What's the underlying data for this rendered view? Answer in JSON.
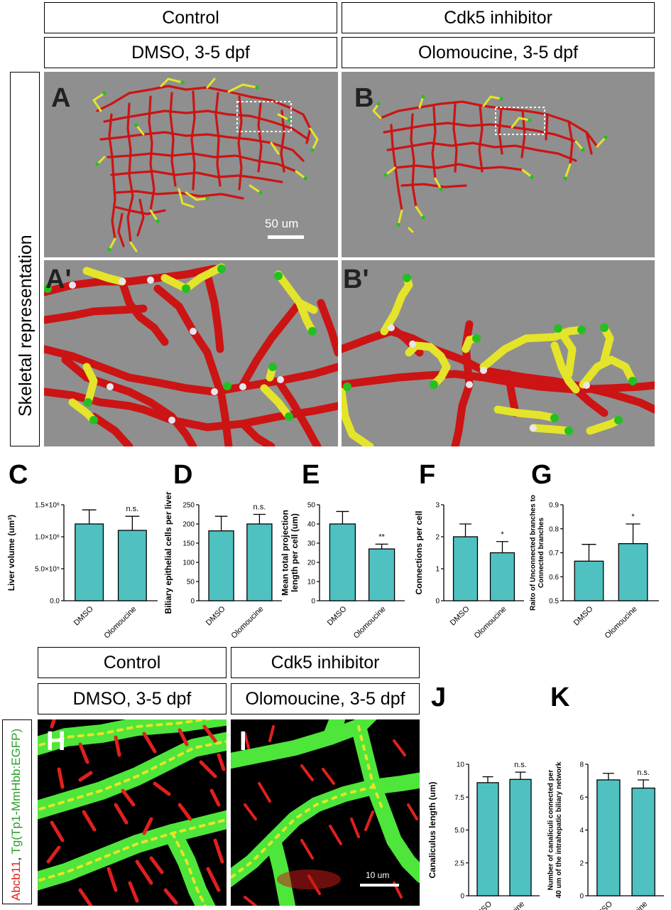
{
  "top": {
    "headers": [
      "Control",
      "Cdk5 inhibitor"
    ],
    "conditions": [
      "DMSO, 3-5 dpf",
      "Olomoucine, 3-5 dpf"
    ],
    "side_label": "Skeletal representation",
    "panel_letters": [
      "A",
      "B",
      "A'",
      "B'"
    ],
    "scalebar_text": "50 um"
  },
  "bottom": {
    "headers": [
      "Control",
      "Cdk5 inhibitor"
    ],
    "conditions": [
      "DMSO, 3-5 dpf",
      "Olomoucine, 3-5 dpf"
    ],
    "side_label_red": "Abcb11",
    "side_label_sep": ", ",
    "side_label_green": "Tg(Tp1-MmHbb:EGFP)",
    "panel_letters": [
      "H",
      "I"
    ],
    "scalebar_text": "10 um"
  },
  "colors": {
    "bar": "#4fc1c1",
    "skeleton_red": "#cc1414",
    "skeleton_yellow": "#e4e42a",
    "end_green": "#22c022",
    "node_white": "#e6e6ee",
    "panel_gray": "#8f8f8f",
    "fluor_green": "#4ee63a",
    "fluor_red": "#e0201e"
  },
  "chart_data": [
    {
      "id": "C",
      "type": "bar",
      "categories": [
        "DMSO",
        "Olomoucine"
      ],
      "values": [
        1200000,
        1100000
      ],
      "errors": [
        220000,
        220000
      ],
      "ylabel": "Liver volume (um³)",
      "ylim": [
        0,
        1500000
      ],
      "ticks": [
        0,
        500000,
        1000000,
        1500000
      ],
      "tick_labels": [
        "0.0",
        "5.0×10⁵",
        "1.0×10⁶",
        "1.5×10⁶"
      ],
      "annotations": [
        "",
        "n.s."
      ]
    },
    {
      "id": "D",
      "type": "bar",
      "categories": [
        "DMSO",
        "Olomoucine"
      ],
      "values": [
        182,
        200
      ],
      "errors": [
        38,
        25
      ],
      "ylabel": "Biliary epithelial cells per liver",
      "ylim": [
        0,
        250
      ],
      "ticks": [
        0,
        50,
        100,
        150,
        200,
        250
      ],
      "tick_labels": [
        "0",
        "50",
        "100",
        "150",
        "200",
        "250"
      ],
      "annotations": [
        "",
        "n.s."
      ]
    },
    {
      "id": "E",
      "type": "bar",
      "categories": [
        "DMSO",
        "Olomoucine"
      ],
      "values": [
        40,
        27
      ],
      "errors": [
        6.5,
        2.5
      ],
      "ylabel": "Mean total projection length per cell (um)",
      "ylim": [
        0,
        50
      ],
      "ticks": [
        0,
        10,
        20,
        30,
        40,
        50
      ],
      "tick_labels": [
        "0",
        "10",
        "20",
        "30",
        "40",
        "50"
      ],
      "annotations": [
        "",
        "**"
      ]
    },
    {
      "id": "F",
      "type": "bar",
      "categories": [
        "DMSO",
        "Olomoucine"
      ],
      "values": [
        2.0,
        1.5
      ],
      "errors": [
        0.4,
        0.35
      ],
      "ylabel": "Connections per cell",
      "ylim": [
        0,
        3
      ],
      "ticks": [
        0,
        1,
        2,
        3
      ],
      "tick_labels": [
        "0",
        "1",
        "2",
        "3"
      ],
      "annotations": [
        "",
        "*"
      ]
    },
    {
      "id": "G",
      "type": "bar",
      "categories": [
        "DMSO",
        "Olomoucine"
      ],
      "values": [
        0.665,
        0.738
      ],
      "errors": [
        0.07,
        0.082
      ],
      "ylabel": "Raito of Unconnected branches to Connected branches",
      "ylim": [
        0.5,
        0.9
      ],
      "ticks": [
        0.5,
        0.6,
        0.7,
        0.8,
        0.9
      ],
      "tick_labels": [
        "0.5",
        "0.6",
        "0.7",
        "0.8",
        "0.9"
      ],
      "annotations": [
        "",
        "*"
      ]
    },
    {
      "id": "J",
      "type": "bar",
      "categories": [
        "DMSO",
        "Olomoucine"
      ],
      "values": [
        8.6,
        8.85
      ],
      "errors": [
        0.45,
        0.55
      ],
      "ylabel": "Canaliculus length (um)",
      "ylim": [
        0,
        10
      ],
      "ticks": [
        0,
        2.5,
        5,
        7.5,
        10
      ],
      "tick_labels": [
        "0",
        "2.5",
        "5.0",
        "7.5",
        "10"
      ],
      "annotations": [
        "",
        "n.s."
      ]
    },
    {
      "id": "K",
      "type": "bar",
      "categories": [
        "DMSO",
        "Olomoucine"
      ],
      "values": [
        7.05,
        6.55
      ],
      "errors": [
        0.4,
        0.5
      ],
      "ylabel": "Number of canaliculi connected per 40 um of the intrahepatic biliary network",
      "ylim": [
        0,
        8
      ],
      "ticks": [
        0,
        2,
        4,
        6,
        8
      ],
      "tick_labels": [
        "0",
        "2",
        "4",
        "6",
        "8"
      ],
      "annotations": [
        "",
        "n.s."
      ]
    }
  ]
}
